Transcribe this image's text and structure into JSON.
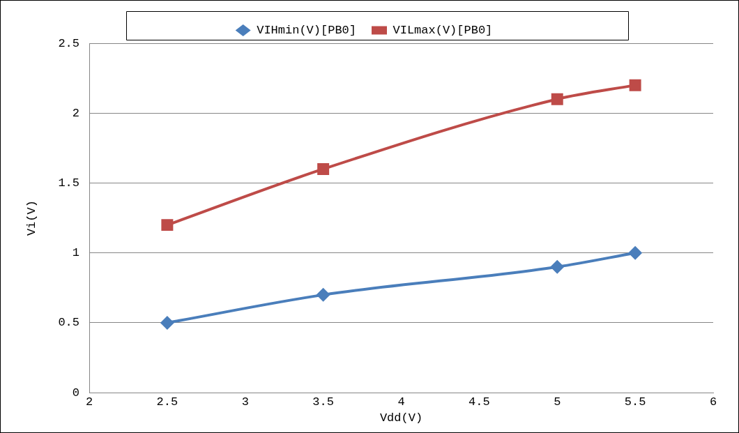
{
  "chart_data": {
    "type": "line",
    "xlabel": "Vdd(V)",
    "ylabel": "Vi(V)",
    "x": [
      2.5,
      3.5,
      5,
      5.5
    ],
    "series": [
      {
        "name": "VIHmin(V)[PB0]",
        "color": "#4a7ebb",
        "values": [
          0.5,
          0.7,
          0.9,
          1.0
        ],
        "marker": "diamond"
      },
      {
        "name": "VILmax(V)[PB0]",
        "color": "#be4b48",
        "values": [
          1.2,
          1.6,
          2.1,
          2.2
        ],
        "marker": "square"
      }
    ],
    "xlim": [
      2,
      6
    ],
    "xticks": [
      2,
      2.5,
      3,
      3.5,
      4,
      4.5,
      5,
      5.5,
      6
    ],
    "ylim": [
      0,
      2.5
    ],
    "yticks": [
      0,
      0.5,
      1,
      1.5,
      2,
      2.5
    ],
    "grid": "y",
    "legend": "top"
  }
}
